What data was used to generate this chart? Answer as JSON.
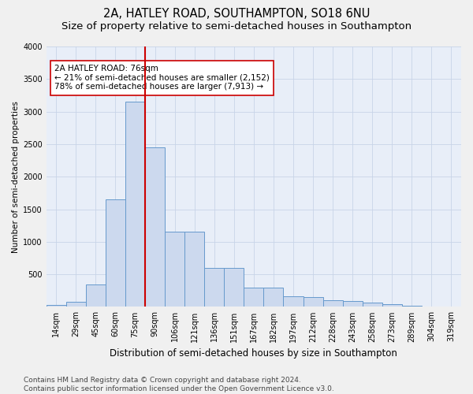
{
  "title_line1": "2A, HATLEY ROAD, SOUTHAMPTON, SO18 6NU",
  "title_line2": "Size of property relative to semi-detached houses in Southampton",
  "xlabel": "Distribution of semi-detached houses by size in Southampton",
  "ylabel": "Number of semi-detached properties",
  "footnote": "Contains HM Land Registry data © Crown copyright and database right 2024.\nContains public sector information licensed under the Open Government Licence v3.0.",
  "categories": [
    "14sqm",
    "29sqm",
    "45sqm",
    "60sqm",
    "75sqm",
    "90sqm",
    "106sqm",
    "121sqm",
    "136sqm",
    "151sqm",
    "167sqm",
    "182sqm",
    "197sqm",
    "212sqm",
    "228sqm",
    "243sqm",
    "258sqm",
    "273sqm",
    "289sqm",
    "304sqm",
    "319sqm"
  ],
  "values": [
    30,
    80,
    350,
    1650,
    3150,
    2450,
    1150,
    1150,
    600,
    600,
    300,
    300,
    160,
    155,
    100,
    95,
    60,
    45,
    18,
    8,
    8
  ],
  "bar_color": "#ccd9ee",
  "bar_edge_color": "#6699cc",
  "highlight_bin_index": 4,
  "property_label": "2A HATLEY ROAD: 76sqm",
  "pct_smaller": 21,
  "count_smaller": 2152,
  "pct_larger": 78,
  "count_larger": 7913,
  "vline_color": "#cc0000",
  "annotation_box_facecolor": "#ffffff",
  "annotation_box_edgecolor": "#cc0000",
  "ylim": [
    0,
    4000
  ],
  "yticks": [
    0,
    500,
    1000,
    1500,
    2000,
    2500,
    3000,
    3500,
    4000
  ],
  "grid_color": "#c8d4e8",
  "plot_bg_color": "#e8eef8",
  "fig_bg_color": "#f0f0f0",
  "title1_fontsize": 10.5,
  "title2_fontsize": 9.5,
  "xlabel_fontsize": 8.5,
  "ylabel_fontsize": 7.5,
  "tick_fontsize": 7,
  "annot_fontsize": 7.5,
  "footnote_fontsize": 6.5
}
